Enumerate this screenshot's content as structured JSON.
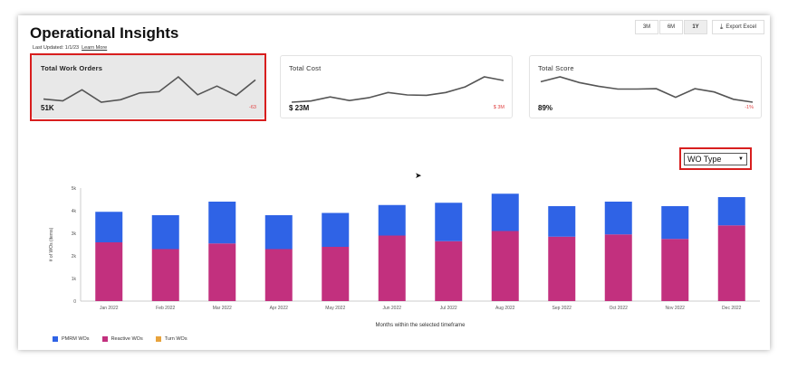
{
  "header": {
    "title": "Operational Insights",
    "last_updated": "Last Updated: 1/1/23",
    "learn_more": "Learn More",
    "ranges": [
      "3M",
      "6M",
      "1Y"
    ],
    "active_range": "1Y",
    "export_label": "Export Excel",
    "export_icon": "download-icon"
  },
  "cards": [
    {
      "title": "Total Work Orders",
      "value": "51K",
      "delta": "-63",
      "trend": [
        4.2,
        3.6,
        7.2,
        3.2,
        4.0,
        6.2,
        6.6,
        11.4,
        5.6,
        8.4,
        5.4,
        10.4
      ]
    },
    {
      "title": "Total Cost",
      "value": "$ 23M",
      "delta": "$ 3M",
      "trend": [
        1.8,
        2.4,
        4.4,
        2.6,
        4.0,
        6.6,
        5.4,
        5.2,
        6.6,
        9.4,
        14.4,
        12.6
      ]
    },
    {
      "title": "Total Score",
      "value": "89%",
      "delta": "-1%",
      "trend": [
        11.2,
        13.6,
        10.8,
        9.0,
        7.6,
        7.6,
        7.8,
        3.6,
        7.8,
        6.2,
        2.6,
        1.2
      ]
    }
  ],
  "dropdown": {
    "selected": "WO Type"
  },
  "chart_data": {
    "type": "bar",
    "categories": [
      "Jan 2022",
      "Feb 2022",
      "Mar 2022",
      "Apr 2022",
      "May 2022",
      "Jun 2022",
      "Jul 2022",
      "Aug 2022",
      "Sep 2022",
      "Oct 2022",
      "Nov 2022",
      "Dec 2022"
    ],
    "series": [
      {
        "name": "Reactive WOs",
        "color": "#c2307e",
        "values": [
          2600,
          2300,
          2550,
          2300,
          2400,
          2900,
          2650,
          3100,
          2850,
          2950,
          2750,
          3350
        ]
      },
      {
        "name": "PMRM WOs",
        "color": "#2f63e6",
        "values": [
          1350,
          1500,
          1850,
          1500,
          1500,
          1350,
          1700,
          1650,
          1350,
          1450,
          1450,
          1250
        ]
      },
      {
        "name": "Turn WOs",
        "color": "#e8a33c",
        "values": [
          0,
          0,
          0,
          0,
          0,
          0,
          0,
          0,
          0,
          0,
          0,
          0
        ]
      }
    ],
    "legend_order": [
      "PMRM WOs",
      "Reactive WOs",
      "Turn WOs"
    ],
    "y_ticks": [
      "0",
      "1k",
      "2k",
      "3k",
      "4k",
      "5k"
    ],
    "ylim": [
      0,
      5000
    ],
    "ylabel": "# of WOs (items)",
    "xlabel": "Months within the selected timeframe",
    "stacked": true,
    "grid": false,
    "legend_position": "bottom-left"
  }
}
